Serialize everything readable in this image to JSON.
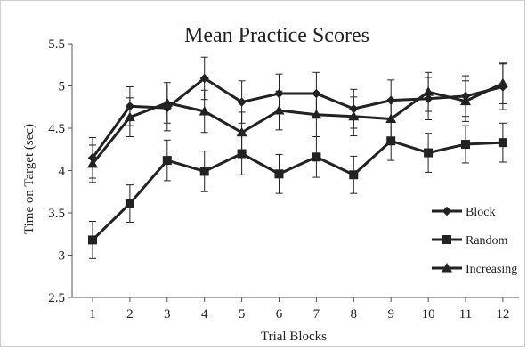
{
  "chart_data": {
    "type": "line",
    "title": "Mean Practice Scores",
    "xlabel": "Trial Blocks",
    "ylabel": "Time on Target (sec)",
    "categories": [
      "1",
      "2",
      "3",
      "4",
      "5",
      "6",
      "7",
      "8",
      "9",
      "10",
      "11",
      "12"
    ],
    "y_ticks": [
      "2.5",
      "3",
      "3.5",
      "4",
      "4.5",
      "5",
      "5.5"
    ],
    "ylim": [
      2.5,
      5.5
    ],
    "grid": false,
    "legend_position": "right",
    "line_color": "#222222",
    "series": [
      {
        "name": "Block",
        "marker": "diamond",
        "values": [
          4.15,
          4.76,
          4.74,
          5.09,
          4.81,
          4.91,
          4.91,
          4.73,
          4.83,
          4.85,
          4.88,
          4.99
        ],
        "error": [
          0.24,
          0.23,
          0.27,
          0.25,
          0.25,
          0.23,
          0.25,
          0.23,
          0.24,
          0.25,
          0.24,
          0.27
        ]
      },
      {
        "name": "Random",
        "marker": "square",
        "values": [
          3.18,
          3.61,
          4.12,
          3.99,
          4.2,
          3.96,
          4.16,
          3.95,
          4.35,
          4.21,
          4.31,
          4.33
        ],
        "error": [
          0.22,
          0.22,
          0.24,
          0.24,
          0.25,
          0.23,
          0.24,
          0.22,
          0.23,
          0.23,
          0.22,
          0.23
        ]
      },
      {
        "name": "Increasing",
        "marker": "triangle",
        "values": [
          4.08,
          4.63,
          4.8,
          4.7,
          4.45,
          4.71,
          4.66,
          4.64,
          4.61,
          4.93,
          4.82,
          5.03
        ],
        "error": [
          0.22,
          0.23,
          0.24,
          0.25,
          0.24,
          0.23,
          0.26,
          0.23,
          0.23,
          0.23,
          0.24,
          0.24
        ]
      }
    ]
  }
}
